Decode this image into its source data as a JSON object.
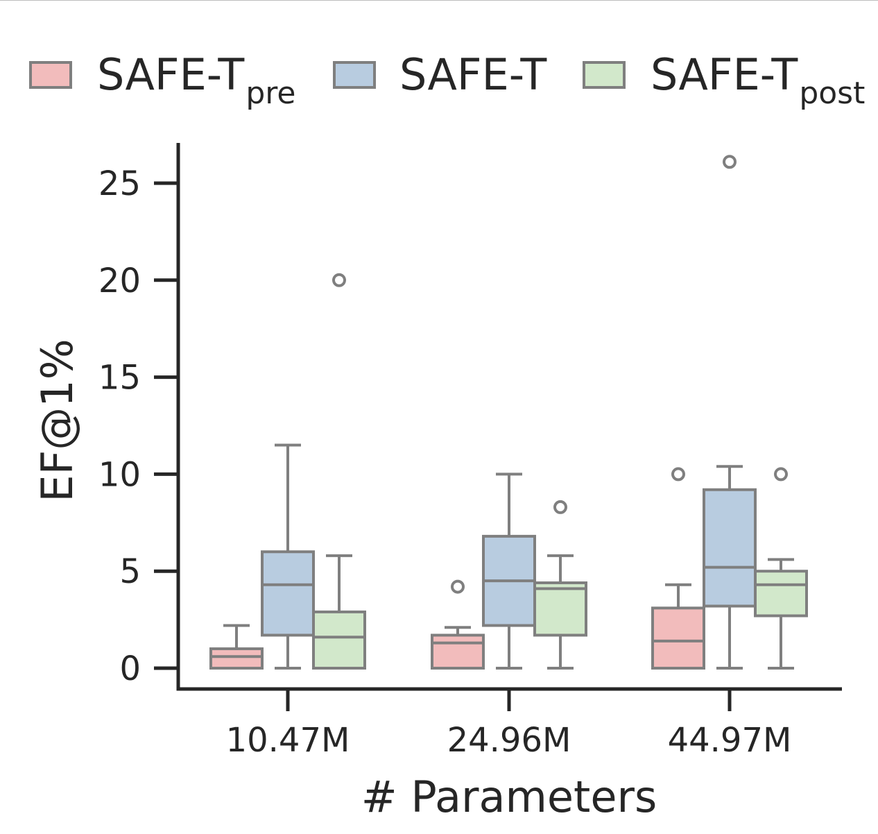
{
  "legend": {
    "items": [
      {
        "base": "SAFE-T",
        "sub": "pre",
        "color": "#f2bcbc"
      },
      {
        "base": "SAFE-T",
        "sub": "",
        "color": "#b8cce0"
      },
      {
        "base": "SAFE-T",
        "sub": "post",
        "color": "#d2e8cb"
      }
    ]
  },
  "chart_data": {
    "type": "box",
    "xlabel": "# Parameters",
    "ylabel": "EF@1%",
    "ylim": [
      -1,
      27
    ],
    "yticks": [
      0,
      5,
      10,
      15,
      20,
      25
    ],
    "categories": [
      "10.47M",
      "24.96M",
      "44.97M"
    ],
    "series": [
      {
        "name": "SAFE-Tpre",
        "color": "#f2bcbc",
        "boxes": [
          {
            "whislo": 0,
            "q1": 0,
            "med": 0.6,
            "q3": 1.0,
            "whishi": 2.2,
            "fliers": []
          },
          {
            "whislo": 0,
            "q1": 0,
            "med": 1.3,
            "q3": 1.7,
            "whishi": 2.1,
            "fliers": [
              4.2
            ]
          },
          {
            "whislo": 0,
            "q1": 0,
            "med": 1.4,
            "q3": 3.1,
            "whishi": 4.3,
            "fliers": [
              10.0
            ]
          }
        ]
      },
      {
        "name": "SAFE-T",
        "color": "#b8cce0",
        "boxes": [
          {
            "whislo": 0,
            "q1": 1.7,
            "med": 4.3,
            "q3": 6.0,
            "whishi": 11.5,
            "fliers": []
          },
          {
            "whislo": 0,
            "q1": 2.2,
            "med": 4.5,
            "q3": 6.8,
            "whishi": 10.0,
            "fliers": []
          },
          {
            "whislo": 0,
            "q1": 3.2,
            "med": 5.2,
            "q3": 9.2,
            "whishi": 10.4,
            "fliers": [
              26.1
            ]
          }
        ]
      },
      {
        "name": "SAFE-Tpost",
        "color": "#d2e8cb",
        "boxes": [
          {
            "whislo": 0,
            "q1": 0,
            "med": 1.6,
            "q3": 2.9,
            "whishi": 5.8,
            "fliers": [
              20.0
            ]
          },
          {
            "whislo": 0,
            "q1": 1.7,
            "med": 4.1,
            "q3": 4.4,
            "whishi": 5.8,
            "fliers": [
              8.3
            ]
          },
          {
            "whislo": 0,
            "q1": 2.7,
            "med": 4.3,
            "q3": 5.0,
            "whishi": 5.6,
            "fliers": [
              10.0
            ]
          }
        ]
      }
    ],
    "grid": false,
    "legend_position": "top"
  }
}
